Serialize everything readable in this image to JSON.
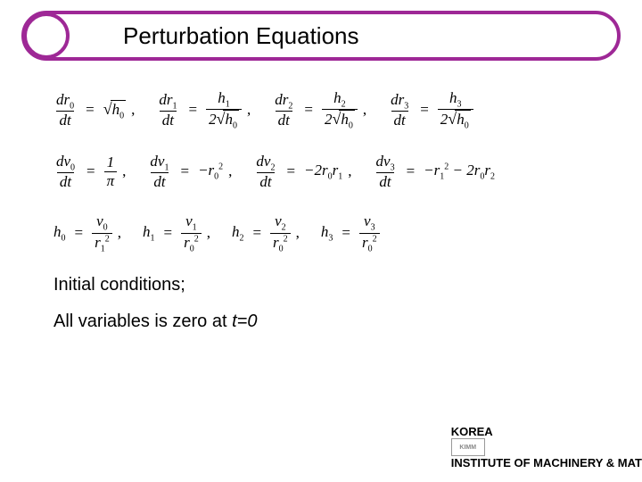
{
  "title": "Perturbation Equations",
  "row1": {
    "t1_num": "dr",
    "t1_num_sub": "0",
    "t1_den": "dt",
    "t1_rhs_sub": "0",
    "t2_num": "dr",
    "t2_num_sub": "1",
    "t2_den": "dt",
    "t2_rhs_num": "h",
    "t2_rhs_num_sub": "1",
    "t2_rhs_den_coef": "2",
    "t2_rhs_den_sub": "0",
    "t3_num": "dr",
    "t3_num_sub": "2",
    "t3_den": "dt",
    "t3_rhs_num": "h",
    "t3_rhs_num_sub": "2",
    "t3_rhs_den_coef": "2",
    "t3_rhs_den_sub": "0",
    "t4_num": "dr",
    "t4_num_sub": "3",
    "t4_den": "dt",
    "t4_rhs_num": "h",
    "t4_rhs_num_sub": "3",
    "t4_rhs_den_coef": "2",
    "t4_rhs_den_sub": "0"
  },
  "row2": {
    "t1_num": "dv",
    "t1_num_sub": "0",
    "t1_den": "dt",
    "t1_rhs_num": "1",
    "t1_rhs_den": "π",
    "t2_num": "dv",
    "t2_num_sub": "1",
    "t2_den": "dt",
    "t2_rhs": "−r",
    "t2_rhs_sub": "0",
    "t2_rhs_sup": "2",
    "t3_num": "dv",
    "t3_num_sub": "2",
    "t3_den": "dt",
    "t3_rhs": "−2r",
    "t3_rhs_sub1": "0",
    "t3_rhs2": "r",
    "t3_rhs_sub2": "1",
    "t4_num": "dv",
    "t4_num_sub": "3",
    "t4_den": "dt",
    "t4_rhs1": "−r",
    "t4_rhs1_sub": "1",
    "t4_rhs1_sup": "2",
    "t4_rhs2": " − 2r",
    "t4_rhs2_sub": "0",
    "t4_rhs3": "r",
    "t4_rhs3_sub": "2"
  },
  "row3": {
    "h0": "h",
    "h0_sub": "0",
    "h0_num": "v",
    "h0_num_sub": "0",
    "h0_den": "r",
    "h0_den_sub": "1",
    "h0_den_sup": "2",
    "h1": "h",
    "h1_sub": "1",
    "h1_num": "v",
    "h1_num_sub": "1",
    "h1_den": "r",
    "h1_den_sub": "0",
    "h1_den_sup": "2",
    "h2": "h",
    "h2_sub": "2",
    "h2_num": "v",
    "h2_num_sub": "2",
    "h2_den": "r",
    "h2_den_sub": "0",
    "h2_den_sup": "2",
    "h3": "h",
    "h3_sub": "3",
    "h3_num": "v",
    "h3_num_sub": "3",
    "h3_den": "r",
    "h3_den_sub": "0",
    "h3_den_sup": "2"
  },
  "text1": "Initial conditions;",
  "text2_a": "All variables is zero at ",
  "text2_b": "t=0",
  "footer_prefix": "KOREA ",
  "footer_rest": "INSTITUTE OF MACHINERY & MAT",
  "logo": "KIMM",
  "colors": {
    "accent": "#9e2896",
    "text": "#000000",
    "bg": "#ffffff"
  }
}
